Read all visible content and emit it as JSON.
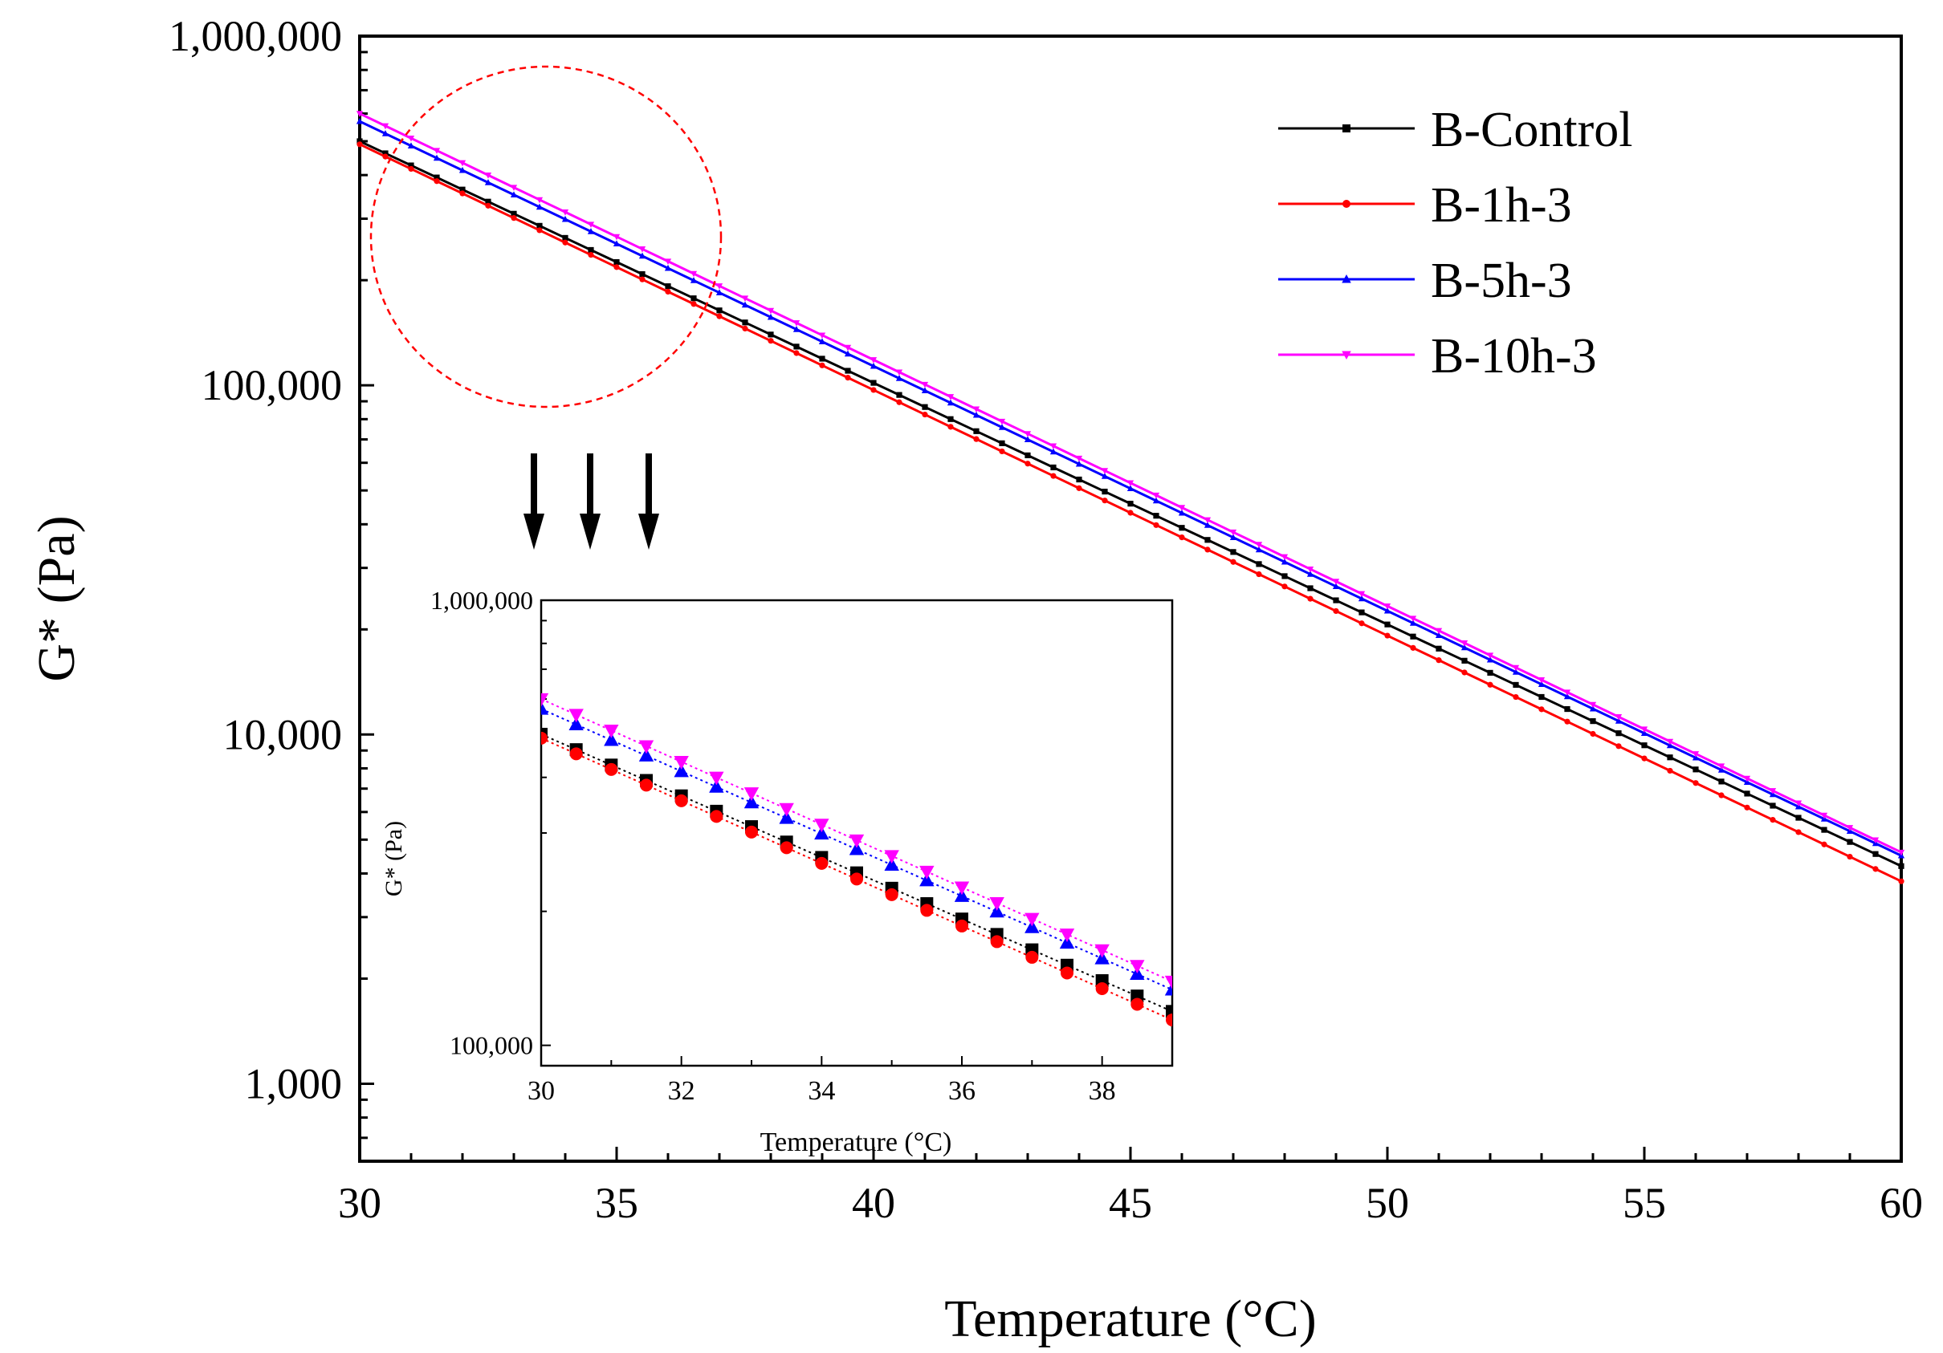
{
  "chart_data": [
    {
      "id": "main",
      "type": "line",
      "title": "",
      "xlabel": "Temperature (°C)",
      "ylabel": "G* (Pa)",
      "xlim": [
        30,
        60
      ],
      "ylim": [
        600,
        1000000
      ],
      "yscale": "log",
      "xticks": [
        30,
        35,
        40,
        45,
        50,
        55,
        60
      ],
      "xtick_labels": [
        "30",
        "35",
        "40",
        "45",
        "50",
        "55",
        "60"
      ],
      "yticks": [
        1000,
        10000,
        100000,
        1000000
      ],
      "ytick_labels": [
        "1,000",
        "10,000",
        "100,000",
        "1,000,000"
      ],
      "legend_position": "top-right",
      "series": [
        {
          "name": "B-Control",
          "color": "#000000",
          "marker": "square",
          "start_value": 500000,
          "end_value": 4200
        },
        {
          "name": "B-1h-3",
          "color": "#ff0000",
          "marker": "circle",
          "start_value": 490000,
          "end_value": 3800
        },
        {
          "name": "B-5h-3",
          "color": "#0000ff",
          "marker": "triangle-up",
          "start_value": 570000,
          "end_value": 4500
        },
        {
          "name": "B-10h-3",
          "color": "#ff00ff",
          "marker": "triangle-down",
          "start_value": 600000,
          "end_value": 4600
        }
      ],
      "x_step": 0.5
    },
    {
      "id": "inset",
      "type": "scatter",
      "title": "",
      "xlabel": "Temperature (°C)",
      "ylabel": "G* (Pa)",
      "xlim": [
        30,
        39
      ],
      "ylim": [
        90000,
        1000000
      ],
      "yscale": "log",
      "xticks": [
        30,
        32,
        34,
        36,
        38
      ],
      "xtick_labels": [
        "30",
        "32",
        "34",
        "36",
        "38"
      ],
      "yticks": [
        100000,
        1000000
      ],
      "ytick_labels": [
        "100,000",
        "1,000,000"
      ],
      "x_step": 0.5
    }
  ],
  "annotations": {
    "highlight_circle": "dashed red circle around 30–37 °C region",
    "arrows": 3,
    "arrow_color": "#000000",
    "circle_color": "#ff0000"
  }
}
